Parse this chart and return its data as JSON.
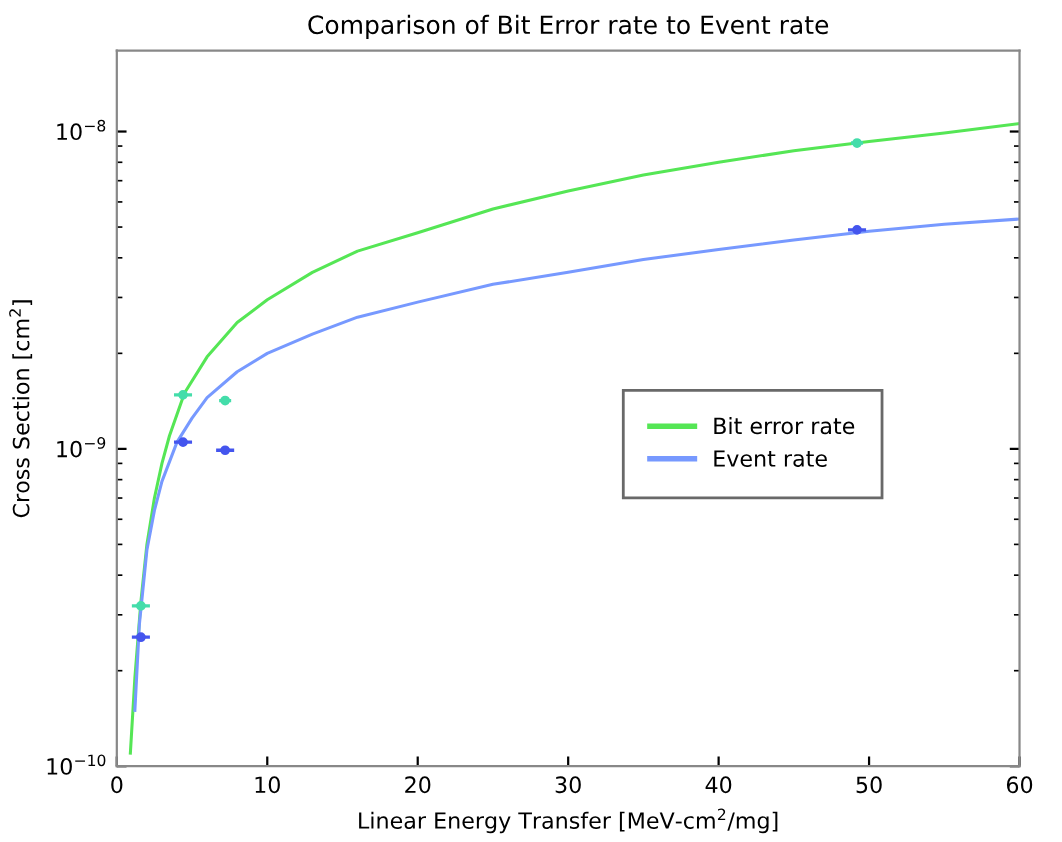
{
  "chart_data": {
    "type": "line",
    "title": "Comparison of Bit Error rate to Event rate",
    "xlabel": "Linear Energy Transfer [MeV-cm$^{2}$/mg]",
    "ylabel": "Cross Section [cm$^{2}$]",
    "log": "y",
    "xlim": [
      0,
      60
    ],
    "xticks": [
      0,
      10,
      20,
      30,
      40,
      50,
      60
    ],
    "ylim": [
      1e-10,
      1.8e-08
    ],
    "yticks": [
      {
        "value": 1e-10,
        "label": "10$^{−10}$"
      },
      {
        "value": 1e-09,
        "label": "10$^{−9}$"
      },
      {
        "value": 1e-08,
        "label": "10$^{−8}$"
      }
    ],
    "grid": false,
    "legend": "right",
    "series": [
      {
        "name": "Bit error rate",
        "color": "#55e655",
        "x": [
          0.9,
          1.2,
          1.6,
          2,
          2.5,
          3,
          3.5,
          4.5,
          6,
          8,
          10,
          13,
          16,
          20,
          25,
          30,
          35,
          40,
          45,
          50,
          55,
          60
        ],
        "values": [
          1.1e-10,
          1.9e-10,
          3.3e-10,
          5e-10,
          7e-10,
          9e-10,
          1.1e-09,
          1.5e-09,
          1.95e-09,
          2.5e-09,
          2.95e-09,
          3.6e-09,
          4.2e-09,
          4.8e-09,
          5.7e-09,
          6.5e-09,
          7.3e-09,
          8e-09,
          8.7e-09,
          9.3e-09,
          9.9e-09,
          1.06e-08
        ]
      },
      {
        "name": "Event rate",
        "color": "#7799ff",
        "x": [
          1.2,
          1.5,
          2,
          2.5,
          3,
          4,
          5,
          6,
          8,
          10,
          13,
          16,
          20,
          25,
          30,
          35,
          40,
          45,
          50,
          55,
          60
        ],
        "values": [
          1.5e-10,
          2.8e-10,
          4.8e-10,
          6.4e-10,
          7.9e-10,
          1.05e-09,
          1.25e-09,
          1.45e-09,
          1.75e-09,
          2e-09,
          2.3e-09,
          2.6e-09,
          2.9e-09,
          3.3e-09,
          3.6e-09,
          3.95e-09,
          4.25e-09,
          4.55e-09,
          4.85e-09,
          5.1e-09,
          5.3e-09
        ]
      },
      {
        "type": "scatter",
        "marker": "circle",
        "color": "#44ddaa",
        "x": [
          1.6,
          4.4,
          7.2,
          49.2
        ],
        "values": [
          3.2e-10,
          1.48e-09,
          1.42e-09,
          9.2e-09
        ],
        "xerrors": [
          0.6,
          0.6,
          0.4,
          0.4
        ]
      },
      {
        "type": "scatter",
        "marker": "circle",
        "color": "#4455ee",
        "x": [
          1.6,
          4.4,
          7.2,
          49.2
        ],
        "values": [
          2.55e-10,
          1.05e-09,
          9.9e-10,
          4.9e-09
        ],
        "xerrors": [
          0.6,
          0.6,
          0.6,
          0.6
        ]
      }
    ]
  }
}
